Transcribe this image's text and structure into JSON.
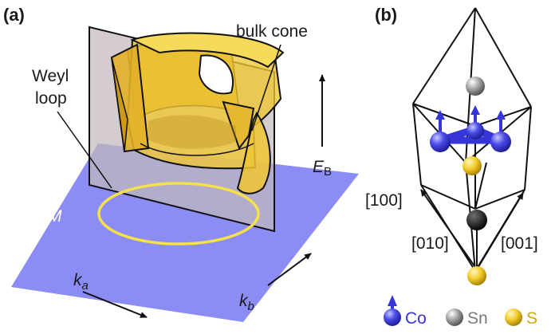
{
  "panel_a": {
    "label": "(a)",
    "bulk_cone_label": "bulk cone",
    "weyl_loop_line1": "Weyl",
    "weyl_loop_line2": "loop",
    "mirror_plane_label": "M",
    "energy_axis": {
      "symbol": "E",
      "subscript": "B"
    },
    "ka_axis": {
      "symbol": "k",
      "subscript": "a"
    },
    "kb_axis": {
      "symbol": "k",
      "subscript": "b"
    },
    "colors": {
      "plane": "#8c8cf5",
      "loop": "#f5e14a",
      "cone": "#e8b828",
      "slice": "#c4b8bc"
    }
  },
  "panel_b": {
    "label": "(b)",
    "dir_100": "[100]",
    "dir_010": "[010]",
    "dir_001": "[001]",
    "legend": [
      {
        "name": "Co",
        "color": "#3535d8"
      },
      {
        "name": "Sn",
        "color": "#8c8c8c"
      },
      {
        "name": "S",
        "color": "#e8c020"
      }
    ]
  }
}
